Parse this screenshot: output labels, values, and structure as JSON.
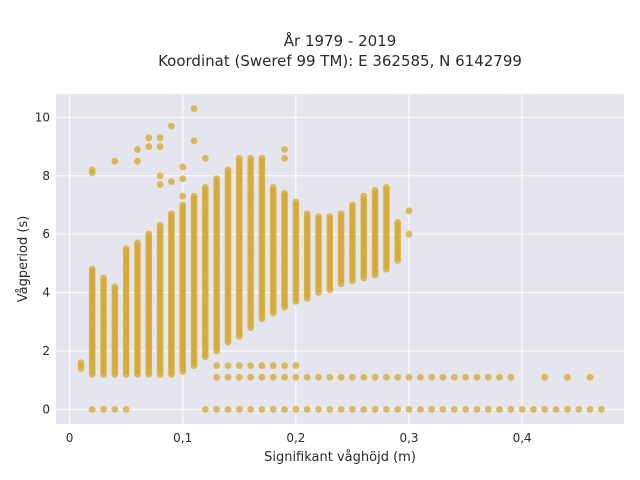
{
  "chart_data": {
    "type": "scatter",
    "title_line1": "År 1979 - 2019",
    "title_line2": "Koordinat (Sweref 99 TM): E 362585, N 6142799",
    "xlabel": "Signifikant våghöjd (m)",
    "ylabel": "Vågperiod (s)",
    "xlim": [
      -0.012,
      0.49
    ],
    "ylim": [
      -0.5,
      10.8
    ],
    "x_ticks": [
      {
        "v": 0,
        "label": "0"
      },
      {
        "v": 0.1,
        "label": "0,1"
      },
      {
        "v": 0.2,
        "label": "0,2"
      },
      {
        "v": 0.3,
        "label": "0,3"
      },
      {
        "v": 0.4,
        "label": "0,4"
      }
    ],
    "y_ticks": [
      {
        "v": 0,
        "label": "0"
      },
      {
        "v": 2,
        "label": "2"
      },
      {
        "v": 4,
        "label": "4"
      },
      {
        "v": 6,
        "label": "6"
      },
      {
        "v": 8,
        "label": "8"
      },
      {
        "v": 10,
        "label": "10"
      }
    ],
    "grid": true,
    "legend": "none",
    "colors": {
      "marker": "#d4a72c",
      "plot_bg": "#e5e5ee",
      "grid": "#ffffff"
    },
    "columns": [
      {
        "x": 0.01,
        "ymin": 1.4,
        "ymax": 1.6
      },
      {
        "x": 0.02,
        "ymin": 1.2,
        "ymax": 4.8
      },
      {
        "x": 0.03,
        "ymin": 1.2,
        "ymax": 4.5
      },
      {
        "x": 0.04,
        "ymin": 1.2,
        "ymax": 4.2
      },
      {
        "x": 0.05,
        "ymin": 1.2,
        "ymax": 5.5
      },
      {
        "x": 0.06,
        "ymin": 1.2,
        "ymax": 5.7
      },
      {
        "x": 0.07,
        "ymin": 1.2,
        "ymax": 6.0
      },
      {
        "x": 0.08,
        "ymin": 1.2,
        "ymax": 6.3
      },
      {
        "x": 0.09,
        "ymin": 1.2,
        "ymax": 6.7
      },
      {
        "x": 0.1,
        "ymin": 1.3,
        "ymax": 7.0
      },
      {
        "x": 0.11,
        "ymin": 1.5,
        "ymax": 7.3
      },
      {
        "x": 0.12,
        "ymin": 1.8,
        "ymax": 7.6
      },
      {
        "x": 0.13,
        "ymin": 2.0,
        "ymax": 7.9
      },
      {
        "x": 0.14,
        "ymin": 2.3,
        "ymax": 8.2
      },
      {
        "x": 0.15,
        "ymin": 2.5,
        "ymax": 8.6
      },
      {
        "x": 0.16,
        "ymin": 2.8,
        "ymax": 8.6
      },
      {
        "x": 0.17,
        "ymin": 3.1,
        "ymax": 8.6
      },
      {
        "x": 0.18,
        "ymin": 3.3,
        "ymax": 7.6
      },
      {
        "x": 0.19,
        "ymin": 3.5,
        "ymax": 7.4
      },
      {
        "x": 0.2,
        "ymin": 3.7,
        "ymax": 7.1
      },
      {
        "x": 0.21,
        "ymin": 3.8,
        "ymax": 6.7
      },
      {
        "x": 0.22,
        "ymin": 4.0,
        "ymax": 6.6
      },
      {
        "x": 0.23,
        "ymin": 4.1,
        "ymax": 6.6
      },
      {
        "x": 0.24,
        "ymin": 4.3,
        "ymax": 6.7
      },
      {
        "x": 0.25,
        "ymin": 4.4,
        "ymax": 7.0
      },
      {
        "x": 0.26,
        "ymin": 4.5,
        "ymax": 7.3
      },
      {
        "x": 0.27,
        "ymin": 4.6,
        "ymax": 7.5
      },
      {
        "x": 0.28,
        "ymin": 4.8,
        "ymax": 7.6
      },
      {
        "x": 0.29,
        "ymin": 5.1,
        "ymax": 6.4
      }
    ],
    "rows": [
      {
        "y": 0.0,
        "xs": [
          0.02,
          0.03,
          0.04,
          0.05,
          0.12,
          0.13,
          0.14,
          0.15,
          0.16,
          0.17,
          0.18,
          0.19,
          0.2,
          0.21,
          0.22,
          0.23,
          0.24,
          0.25,
          0.26,
          0.27,
          0.28,
          0.29,
          0.3,
          0.31,
          0.32,
          0.33,
          0.34,
          0.35,
          0.36,
          0.37,
          0.38,
          0.39,
          0.4,
          0.41,
          0.42,
          0.43,
          0.44,
          0.45,
          0.46,
          0.47
        ]
      },
      {
        "y": 1.1,
        "xs": [
          0.13,
          0.14,
          0.15,
          0.16,
          0.17,
          0.18,
          0.19,
          0.2,
          0.21,
          0.22,
          0.23,
          0.24,
          0.25,
          0.26,
          0.27,
          0.28,
          0.29,
          0.3,
          0.31,
          0.32,
          0.33,
          0.34,
          0.35,
          0.36,
          0.37,
          0.38,
          0.39,
          0.42,
          0.44,
          0.46
        ]
      },
      {
        "y": 1.5,
        "xs": [
          0.13,
          0.14,
          0.15,
          0.16,
          0.17,
          0.18,
          0.19,
          0.2
        ]
      }
    ],
    "scatter_points": [
      {
        "x": 0.02,
        "y": 8.1
      },
      {
        "x": 0.02,
        "y": 8.2
      },
      {
        "x": 0.04,
        "y": 8.5
      },
      {
        "x": 0.06,
        "y": 8.5
      },
      {
        "x": 0.06,
        "y": 8.9
      },
      {
        "x": 0.07,
        "y": 9.0
      },
      {
        "x": 0.07,
        "y": 9.3
      },
      {
        "x": 0.08,
        "y": 7.7
      },
      {
        "x": 0.08,
        "y": 8.0
      },
      {
        "x": 0.08,
        "y": 9.0
      },
      {
        "x": 0.08,
        "y": 9.3
      },
      {
        "x": 0.09,
        "y": 7.8
      },
      {
        "x": 0.09,
        "y": 9.7
      },
      {
        "x": 0.1,
        "y": 7.3
      },
      {
        "x": 0.1,
        "y": 7.9
      },
      {
        "x": 0.1,
        "y": 8.3
      },
      {
        "x": 0.11,
        "y": 9.2
      },
      {
        "x": 0.11,
        "y": 10.3
      },
      {
        "x": 0.12,
        "y": 8.6
      },
      {
        "x": 0.19,
        "y": 8.6
      },
      {
        "x": 0.19,
        "y": 8.9
      },
      {
        "x": 0.3,
        "y": 6.0
      },
      {
        "x": 0.3,
        "y": 6.8
      }
    ]
  }
}
